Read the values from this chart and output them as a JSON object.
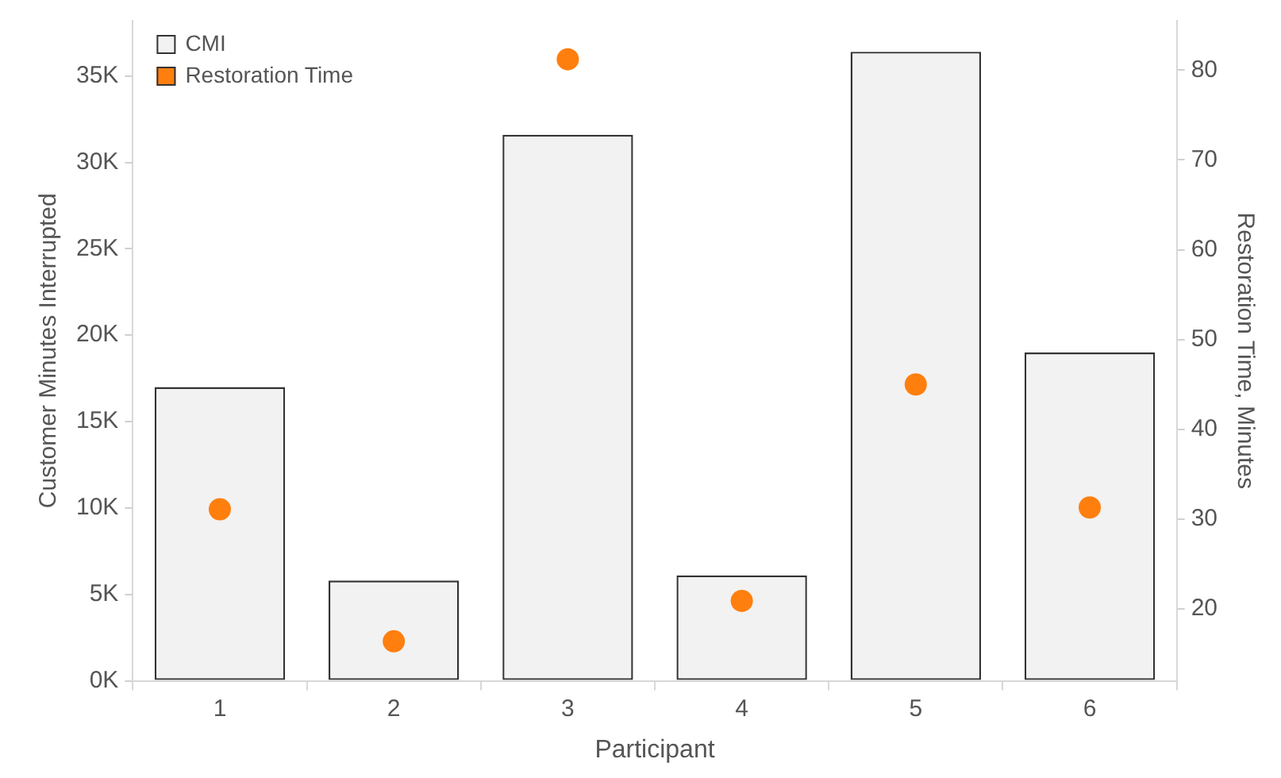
{
  "chart_data": {
    "type": "bar",
    "xlabel": "Participant",
    "ylabel": "Customer Minutes Interrupted",
    "y2label": "Restoration Time, Minutes",
    "categories": [
      "1",
      "2",
      "3",
      "4",
      "5",
      "6"
    ],
    "series": [
      {
        "name": "CMI",
        "type": "bar",
        "color": "#f2f2f2",
        "values": [
          17000,
          5800,
          31600,
          6100,
          36400,
          19000
        ]
      },
      {
        "name": "Restoration Time",
        "type": "scatter",
        "axis": "y2",
        "color": "#ff7f0e",
        "x": [
          "1",
          "2",
          "3",
          "4",
          "5",
          "6"
        ],
        "values": [
          31.1,
          16.4,
          81.2,
          20.9,
          45.0,
          31.3
        ]
      }
    ],
    "ylim": [
      0,
      38200
    ],
    "yticks": [
      {
        "value": 0,
        "label": "0K"
      },
      {
        "value": 5000,
        "label": "5K"
      },
      {
        "value": 10000,
        "label": "10K"
      },
      {
        "value": 15000,
        "label": "15K"
      },
      {
        "value": 20000,
        "label": "20K"
      },
      {
        "value": 25000,
        "label": "25K"
      },
      {
        "value": 30000,
        "label": "30K"
      },
      {
        "value": 35000,
        "label": "35K"
      }
    ],
    "y2lim": [
      12,
      85.5
    ],
    "y2ticks": [
      20,
      30,
      40,
      50,
      60,
      70,
      80
    ],
    "grid": false,
    "legend": "top left",
    "marker": "circle"
  }
}
